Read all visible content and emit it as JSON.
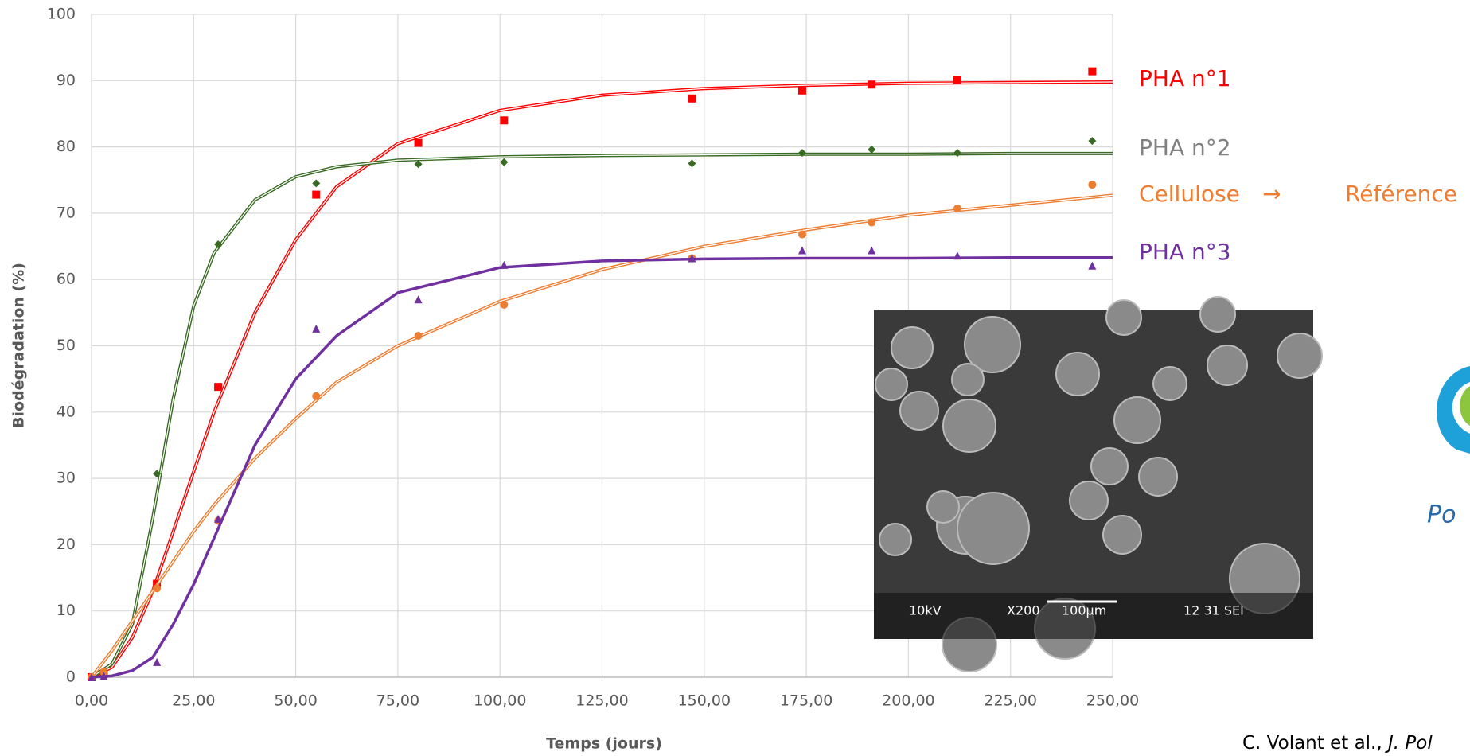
{
  "chart_data": {
    "type": "scatter",
    "xlabel": "Temps (jours)",
    "ylabel": "Biodégradation (%)",
    "xlim": [
      0,
      250
    ],
    "ylim": [
      0,
      100
    ],
    "xticks": [
      {
        "value": 0,
        "label": "0,00"
      },
      {
        "value": 25,
        "label": "25,00"
      },
      {
        "value": 50,
        "label": "50,00"
      },
      {
        "value": 75,
        "label": "75,00"
      },
      {
        "value": 100,
        "label": "100,00"
      },
      {
        "value": 125,
        "label": "125,00"
      },
      {
        "value": 150,
        "label": "150,00"
      },
      {
        "value": 175,
        "label": "175,00"
      },
      {
        "value": 200,
        "label": "200,00"
      },
      {
        "value": 225,
        "label": "225,00"
      },
      {
        "value": 250,
        "label": "250,00"
      }
    ],
    "yticks": [
      0,
      10,
      20,
      30,
      40,
      50,
      60,
      70,
      80,
      90,
      100
    ],
    "grid": true,
    "x": [
      0,
      3,
      16,
      31,
      55,
      80,
      101,
      147,
      174,
      191,
      212,
      245
    ],
    "fit_x": [
      0,
      5,
      10,
      15,
      20,
      25,
      30,
      40,
      50,
      60,
      75,
      100,
      125,
      150,
      175,
      200,
      225,
      250
    ],
    "series": [
      {
        "name": "PHA n°1",
        "color": "#ff0000",
        "marker": "square",
        "values": [
          0,
          0.5,
          14.1,
          43.8,
          72.8,
          80.6,
          84,
          87.3,
          88.5,
          89.4,
          90.1,
          91.4
        ],
        "fit_values": [
          0,
          1.5,
          6,
          13,
          22,
          31,
          40,
          55,
          66,
          74,
          80.5,
          85.5,
          87.8,
          88.8,
          89.3,
          89.6,
          89.7,
          89.8
        ]
      },
      {
        "name": "PHA n°2",
        "color": "#3a6b24",
        "label_color": "#808080",
        "marker": "diamond",
        "values": [
          0,
          0.5,
          30.7,
          65.3,
          74.5,
          77.4,
          77.7,
          77.5,
          79.1,
          79.6,
          79.1,
          80.9
        ],
        "fit_values": [
          0,
          2,
          8,
          24,
          42,
          56,
          64,
          72,
          75.5,
          77,
          78,
          78.5,
          78.7,
          78.8,
          78.9,
          78.9,
          79,
          79
        ]
      },
      {
        "name": "Cellulose",
        "color": "#ed7d31",
        "marker": "circle",
        "values": [
          0,
          0.8,
          13.4,
          23.6,
          42.4,
          51.5,
          56.2,
          63.2,
          66.8,
          68.6,
          70.7,
          74.3
        ],
        "fit_values": [
          0,
          4,
          8.5,
          13,
          17.5,
          22,
          26,
          33,
          39,
          44.5,
          50,
          56.7,
          61.5,
          65,
          67.5,
          69.7,
          71.2,
          72.7
        ]
      },
      {
        "name": "PHA n°3",
        "color": "#7030a0",
        "marker": "triangle",
        "values": [
          0,
          0.2,
          2.3,
          23.9,
          52.6,
          57,
          62.2,
          63.2,
          64.4,
          64.4,
          63.6,
          62.1
        ],
        "fit_values": [
          0,
          0.2,
          1,
          3,
          8,
          14,
          21,
          35,
          45,
          51.5,
          58,
          61.8,
          62.8,
          63.1,
          63.2,
          63.2,
          63.3,
          63.3
        ]
      }
    ],
    "annotations": [
      "→",
      "Référence"
    ]
  },
  "inset": {
    "labels": [
      "10kV",
      "X200",
      "100µm",
      "12 31 SEI"
    ]
  },
  "logo": {
    "text": "Po"
  },
  "citation": {
    "authors": "C. Volant et al.,",
    "journal": "J. Pol"
  }
}
